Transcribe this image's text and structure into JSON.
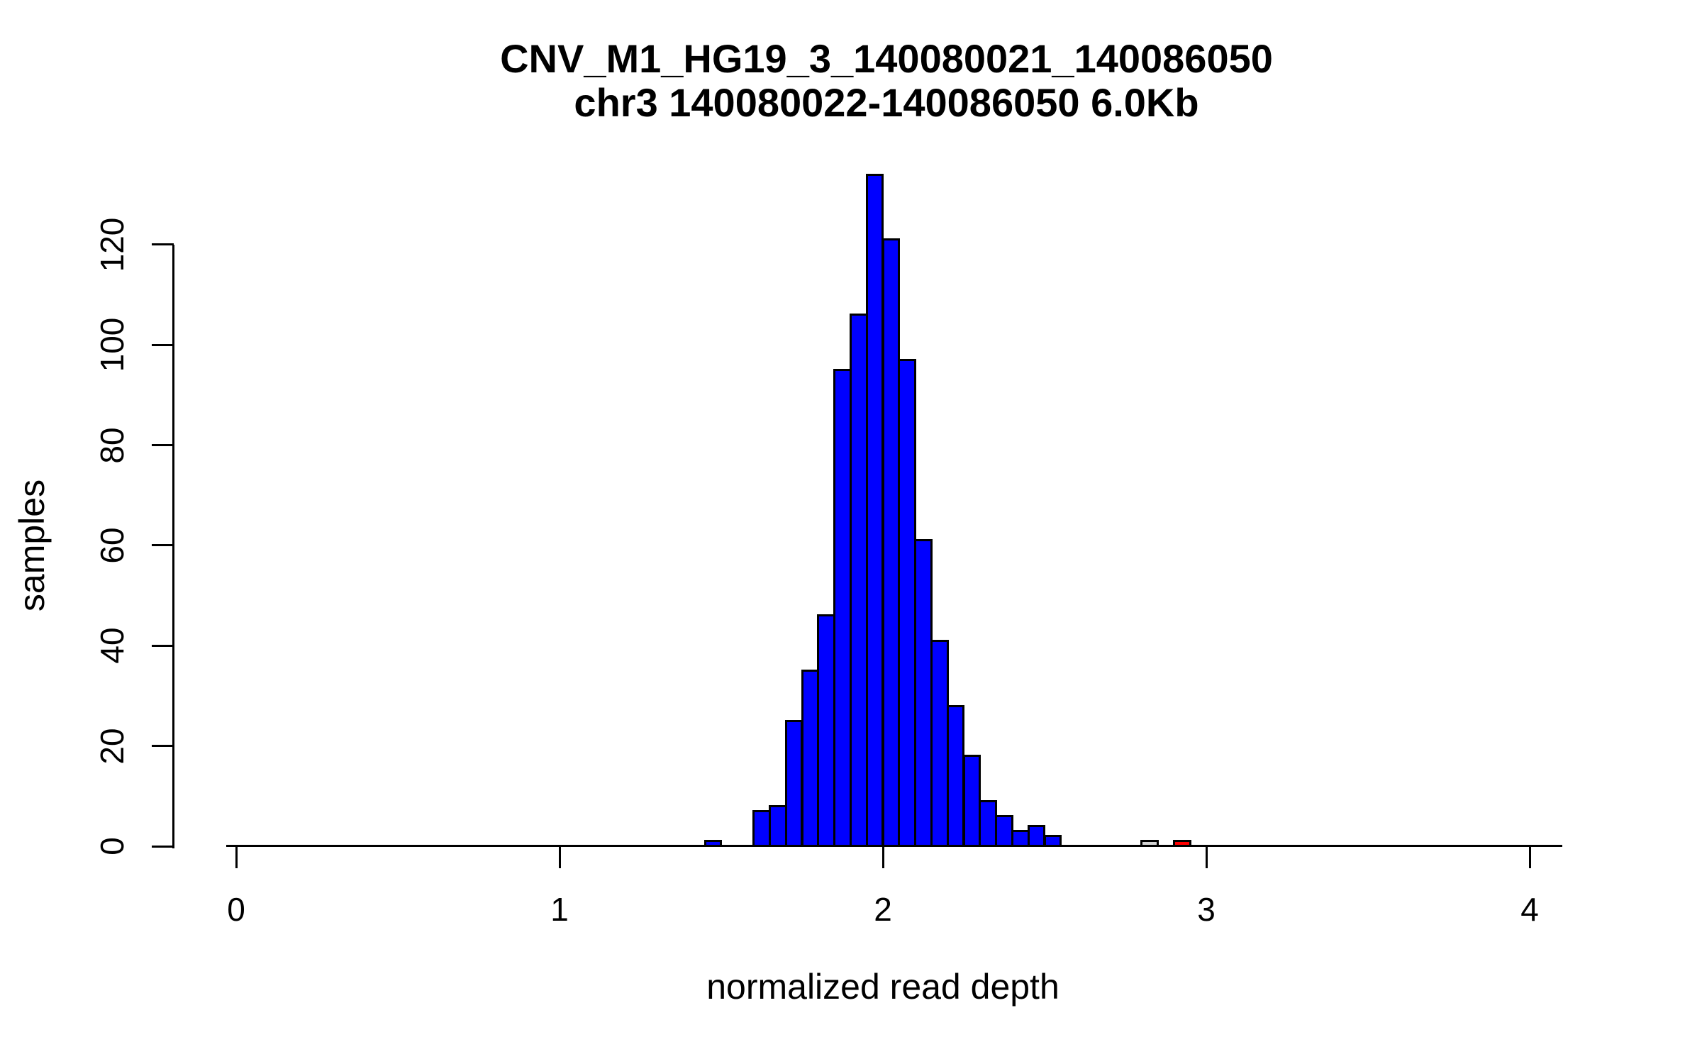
{
  "figure": {
    "background": "#ffffff",
    "title_line1": "CNV_M1_HG19_3_140080021_140086050",
    "title_line2": "chr3 140080022-140086050 6.0Kb"
  },
  "chart_data": {
    "type": "bar",
    "subtype": "histogram",
    "title": "CNV_M1_HG19_3_140080021_140086050",
    "subtitle": "chr3 140080022-140086050 6.0Kb",
    "xlabel": "normalized read depth",
    "ylabel": "samples",
    "xlim": [
      -0.03,
      4.1
    ],
    "ylim": [
      0,
      140
    ],
    "x_ticks": [
      0,
      1,
      2,
      3,
      4
    ],
    "y_ticks": [
      0,
      20,
      40,
      60,
      80,
      100,
      120
    ],
    "grid": false,
    "legend": null,
    "bin_width": 0.05,
    "bar_fill_default": "#0000ff",
    "bar_border_color": "#000000",
    "bins": [
      {
        "start": 1.45,
        "count": 1,
        "fill": "#0000ff"
      },
      {
        "start": 1.5,
        "count": 0,
        "fill": "#0000ff"
      },
      {
        "start": 1.55,
        "count": 0,
        "fill": "#0000ff"
      },
      {
        "start": 1.6,
        "count": 7,
        "fill": "#0000ff"
      },
      {
        "start": 1.65,
        "count": 8,
        "fill": "#0000ff"
      },
      {
        "start": 1.7,
        "count": 25,
        "fill": "#0000ff"
      },
      {
        "start": 1.75,
        "count": 35,
        "fill": "#0000ff"
      },
      {
        "start": 1.8,
        "count": 46,
        "fill": "#0000ff"
      },
      {
        "start": 1.85,
        "count": 95,
        "fill": "#0000ff"
      },
      {
        "start": 1.9,
        "count": 106,
        "fill": "#0000ff"
      },
      {
        "start": 1.95,
        "count": 134,
        "fill": "#0000ff"
      },
      {
        "start": 2.0,
        "count": 121,
        "fill": "#0000ff"
      },
      {
        "start": 2.05,
        "count": 97,
        "fill": "#0000ff"
      },
      {
        "start": 2.1,
        "count": 61,
        "fill": "#0000ff"
      },
      {
        "start": 2.15,
        "count": 41,
        "fill": "#0000ff"
      },
      {
        "start": 2.2,
        "count": 28,
        "fill": "#0000ff"
      },
      {
        "start": 2.25,
        "count": 18,
        "fill": "#0000ff"
      },
      {
        "start": 2.3,
        "count": 9,
        "fill": "#0000ff"
      },
      {
        "start": 2.35,
        "count": 6,
        "fill": "#0000ff"
      },
      {
        "start": 2.4,
        "count": 3,
        "fill": "#0000ff"
      },
      {
        "start": 2.45,
        "count": 4,
        "fill": "#0000ff"
      },
      {
        "start": 2.5,
        "count": 2,
        "fill": "#0000ff"
      },
      {
        "start": 2.55,
        "count": 0,
        "fill": "#0000ff"
      },
      {
        "start": 2.6,
        "count": 0,
        "fill": "#0000ff"
      },
      {
        "start": 2.65,
        "count": 0,
        "fill": "#0000ff"
      },
      {
        "start": 2.7,
        "count": 0,
        "fill": "#0000ff"
      },
      {
        "start": 2.75,
        "count": 0,
        "fill": "#0000ff"
      },
      {
        "start": 2.8,
        "count": 1,
        "fill": "#d3d3d3"
      },
      {
        "start": 2.85,
        "count": 0,
        "fill": "#0000ff"
      },
      {
        "start": 2.9,
        "count": 1,
        "fill": "#ff0000"
      }
    ]
  }
}
